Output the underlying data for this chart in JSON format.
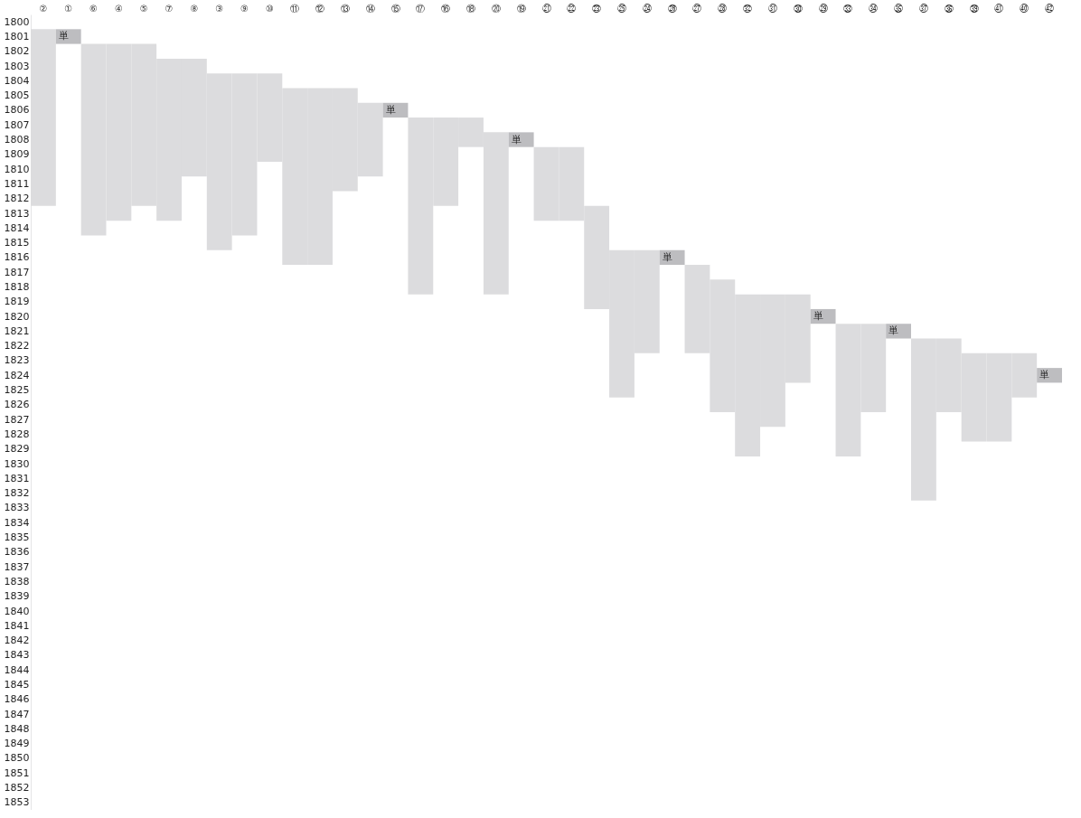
{
  "chart_data": {
    "type": "bar",
    "categories": [
      "②",
      "①",
      "⑥",
      "④",
      "⑤",
      "⑦",
      "⑧",
      "③",
      "⑨",
      "⑩",
      "⑪",
      "⑫",
      "⑬",
      "⑭",
      "⑮",
      "⑰",
      "⑯",
      "⑱",
      "⑳",
      "⑲",
      "㉑",
      "㉒",
      "㉓",
      "㉕",
      "㉔",
      "㉖",
      "㉗",
      "㉘",
      "㉜",
      "㉛",
      "㉚",
      "㉙",
      "㉝",
      "㉞",
      "㉟",
      "㊲",
      "㊱",
      "㊴",
      "㊶",
      "㊵",
      "㊷"
    ],
    "base": [
      1800.5,
      1800.5,
      1801.5,
      1801.5,
      1801.5,
      1802.5,
      1802.5,
      1803.5,
      1803.5,
      1803.5,
      1804.5,
      1804.5,
      1804.5,
      1805.5,
      1805.5,
      1806.5,
      1806.5,
      1806.5,
      1807.5,
      1807.5,
      1808.5,
      1808.5,
      1812.5,
      1815.5,
      1815.5,
      1815.5,
      1816.5,
      1817.5,
      1818.5,
      1818.5,
      1818.5,
      1819.5,
      1820.5,
      1820.5,
      1820.5,
      1821.5,
      1821.5,
      1822.5,
      1822.5,
      1822.5,
      1823.5
    ],
    "values": [
      12,
      1,
      13,
      12,
      11,
      11,
      8,
      12,
      11,
      6,
      12,
      12,
      7,
      5,
      1,
      12,
      6,
      2,
      11,
      1,
      5,
      5,
      7,
      10,
      7,
      1,
      6,
      9,
      11,
      9,
      6,
      1,
      9,
      6,
      1,
      11,
      5,
      6,
      6,
      3,
      1
    ],
    "colors": [
      "#dcdcde",
      "#bdbdc0",
      "#dcdcde",
      "#dcdcde",
      "#dcdcde",
      "#dcdcde",
      "#dcdcde",
      "#dcdcde",
      "#dcdcde",
      "#dcdcde",
      "#dcdcde",
      "#dcdcde",
      "#dcdcde",
      "#dcdcde",
      "#bdbdc0",
      "#dcdcde",
      "#dcdcde",
      "#dcdcde",
      "#dcdcde",
      "#bdbdc0",
      "#dcdcde",
      "#dcdcde",
      "#dcdcde",
      "#dcdcde",
      "#dcdcde",
      "#bdbdc0",
      "#dcdcde",
      "#dcdcde",
      "#dcdcde",
      "#dcdcde",
      "#dcdcde",
      "#bdbdc0",
      "#dcdcde",
      "#dcdcde",
      "#bdbdc0",
      "#dcdcde",
      "#dcdcde",
      "#dcdcde",
      "#dcdcde",
      "#dcdcde",
      "#bdbdc0"
    ],
    "value_labels": [
      null,
      "単",
      null,
      null,
      null,
      null,
      null,
      null,
      null,
      null,
      null,
      null,
      null,
      null,
      "単",
      null,
      null,
      null,
      null,
      "単",
      null,
      null,
      null,
      null,
      null,
      "単",
      null,
      null,
      null,
      null,
      null,
      "単",
      null,
      null,
      "単",
      null,
      null,
      null,
      null,
      null,
      "単"
    ],
    "ylim": [
      1853.5,
      1799.5
    ],
    "yticks": [
      1800,
      1801,
      1802,
      1803,
      1804,
      1805,
      1806,
      1807,
      1808,
      1809,
      1810,
      1811,
      1812,
      1813,
      1814,
      1815,
      1816,
      1817,
      1818,
      1819,
      1820,
      1821,
      1822,
      1823,
      1824,
      1825,
      1826,
      1827,
      1828,
      1829,
      1830,
      1831,
      1832,
      1833,
      1834,
      1835,
      1836,
      1837,
      1838,
      1839,
      1840,
      1841,
      1842,
      1843,
      1844,
      1845,
      1846,
      1847,
      1848,
      1849,
      1850,
      1851,
      1852,
      1853
    ]
  }
}
